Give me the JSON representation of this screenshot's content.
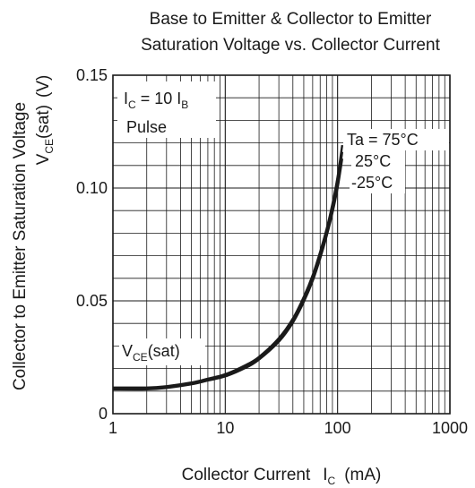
{
  "chart_data": {
    "type": "line",
    "title_lines": [
      "Base to Emitter & Collector to Emitter",
      "Saturation Voltage vs. Collector Current"
    ],
    "xlabel": {
      "main": "Collector Current",
      "symbol": "I",
      "symbol_sub": "C",
      "unit": "(mA)"
    },
    "ylabel": {
      "main": "Collector to Emitter Saturation Voltage",
      "symbol": "V",
      "symbol_sub": "CE",
      "suffix": "(sat)",
      "unit": "(V)"
    },
    "x_scale": "log",
    "xlim": [
      1,
      1000
    ],
    "ylim": [
      0,
      0.15
    ],
    "x_ticks": [
      1,
      10,
      100,
      1000
    ],
    "x_tick_labels": [
      "1",
      "10",
      "100",
      "1000"
    ],
    "y_ticks": [
      0,
      0.05,
      0.1,
      0.15
    ],
    "y_tick_labels": [
      "0",
      "0.05",
      "0.10",
      "0.15"
    ],
    "grid": true,
    "conditions": {
      "ic": {
        "symbol": "I",
        "sub": "C",
        "eq": "= 10",
        "symbol2": "I",
        "sub2": "B"
      },
      "mode": "Pulse"
    },
    "curve_label": {
      "symbol": "V",
      "sub": "CE",
      "suffix": "(sat)"
    },
    "series": [
      {
        "name": "Ta = 75°C",
        "x": [
          1,
          2,
          3,
          5,
          7,
          10,
          15,
          20,
          30,
          40,
          50,
          60,
          70,
          80,
          90,
          100,
          110
        ],
        "y": [
          0.0116,
          0.0116,
          0.0122,
          0.0138,
          0.0155,
          0.0175,
          0.0214,
          0.0252,
          0.0335,
          0.0422,
          0.0518,
          0.0614,
          0.0718,
          0.082,
          0.093,
          0.105,
          0.119
        ]
      },
      {
        "name": "25°C",
        "x": [
          1,
          2,
          3,
          5,
          7,
          10,
          15,
          20,
          30,
          40,
          50,
          60,
          70,
          80,
          90,
          100,
          110
        ],
        "y": [
          0.0112,
          0.0112,
          0.0118,
          0.0134,
          0.0151,
          0.017,
          0.0208,
          0.0246,
          0.0327,
          0.0413,
          0.0506,
          0.0601,
          0.0702,
          0.0803,
          0.091,
          0.102,
          0.116
        ]
      },
      {
        "name": "-25°C",
        "x": [
          1,
          2,
          3,
          5,
          7,
          10,
          15,
          20,
          30,
          40,
          50,
          60,
          70,
          80,
          90,
          100,
          110
        ],
        "y": [
          0.0108,
          0.0108,
          0.0114,
          0.013,
          0.0147,
          0.0165,
          0.0202,
          0.024,
          0.0319,
          0.0403,
          0.0495,
          0.0588,
          0.0688,
          0.0788,
          0.089,
          0.1,
          0.113
        ]
      }
    ],
    "colors": {
      "line": "#1a1a1a",
      "grid": "#1a1a1a",
      "background": "#ffffff"
    }
  }
}
